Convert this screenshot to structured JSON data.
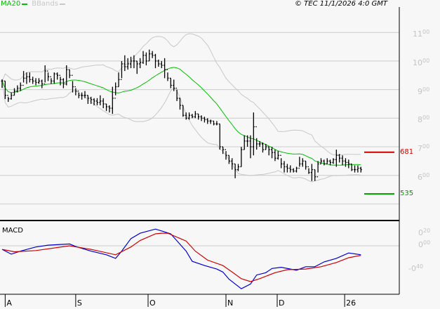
{
  "header": {
    "legend": [
      {
        "label": "MA20",
        "color": "#00c000"
      },
      {
        "label": "BBands",
        "color": "#c8c8c8"
      }
    ],
    "stamp": "© TEC 11/1/2026 4:0 GMT"
  },
  "chart_data": [
    {
      "type": "ohlc",
      "panel": "price",
      "ylim": [
        4.8,
        12.0
      ],
      "grid": true,
      "y_ticks": [
        {
          "value": 11,
          "main": "11",
          "sup": "00"
        },
        {
          "value": 10,
          "main": "10",
          "sup": "00"
        },
        {
          "value": 9,
          "main": "9",
          "sup": "00"
        },
        {
          "value": 8,
          "main": "8",
          "sup": "00"
        },
        {
          "value": 7,
          "main": "7",
          "sup": "00"
        },
        {
          "value": 6,
          "main": "6",
          "sup": "00"
        }
      ],
      "extra_gridlines": [
        5
      ],
      "bar_fields": [
        "high",
        "low",
        "close"
      ],
      "bars": [
        [
          9.36,
          9.06,
          9.3
        ],
        [
          9.3,
          8.67,
          8.8
        ],
        [
          8.75,
          8.57,
          8.68
        ],
        [
          8.9,
          8.65,
          8.8
        ],
        [
          9.05,
          8.8,
          8.95
        ],
        [
          9.15,
          8.9,
          9.05
        ],
        [
          9.25,
          8.95,
          9.15
        ],
        [
          9.65,
          9.25,
          9.4
        ],
        [
          9.6,
          9.2,
          9.45
        ],
        [
          9.6,
          9.25,
          9.35
        ],
        [
          9.45,
          9.2,
          9.3
        ],
        [
          9.4,
          9.15,
          9.25
        ],
        [
          9.4,
          9.2,
          9.3
        ],
        [
          9.35,
          9.05,
          9.2
        ],
        [
          9.85,
          9.25,
          9.65
        ],
        [
          9.6,
          9.3,
          9.45
        ],
        [
          9.4,
          9.2,
          9.3
        ],
        [
          9.6,
          9.2,
          9.55
        ],
        [
          9.6,
          9.35,
          9.5
        ],
        [
          9.45,
          9.15,
          9.35
        ],
        [
          9.4,
          9.05,
          9.2
        ],
        [
          9.85,
          9.15,
          9.7
        ],
        [
          9.7,
          9.4,
          9.5
        ],
        [
          9.3,
          8.9,
          9.1
        ],
        [
          9.05,
          8.8,
          8.95
        ],
        [
          8.9,
          8.7,
          8.8
        ],
        [
          8.9,
          8.65,
          8.8
        ],
        [
          8.95,
          8.7,
          8.8
        ],
        [
          8.8,
          8.5,
          8.7
        ],
        [
          8.75,
          8.5,
          8.65
        ],
        [
          8.7,
          8.45,
          8.6
        ],
        [
          8.7,
          8.45,
          8.55
        ],
        [
          8.8,
          8.45,
          8.6
        ],
        [
          8.7,
          8.35,
          8.5
        ],
        [
          8.5,
          8.25,
          8.4
        ],
        [
          8.45,
          8.2,
          8.35
        ],
        [
          9.1,
          8.15,
          8.7
        ],
        [
          9.25,
          8.8,
          9.1
        ],
        [
          9.6,
          9.1,
          9.35
        ],
        [
          10.0,
          9.4,
          9.9
        ],
        [
          10.2,
          9.65,
          9.8
        ],
        [
          10.1,
          9.7,
          9.9
        ],
        [
          10.15,
          9.75,
          10.0
        ],
        [
          10.2,
          9.75,
          10.0
        ],
        [
          10.0,
          9.55,
          9.9
        ],
        [
          10.1,
          9.75,
          9.95
        ],
        [
          10.35,
          9.9,
          10.2
        ],
        [
          10.3,
          9.85,
          10.0
        ],
        [
          10.4,
          10.0,
          10.25
        ],
        [
          10.35,
          10.1,
          10.2
        ],
        [
          10.25,
          9.75,
          10.0
        ],
        [
          10.05,
          9.8,
          9.9
        ],
        [
          10.0,
          9.75,
          9.85
        ],
        [
          10.1,
          9.4,
          9.7
        ],
        [
          9.6,
          9.3,
          9.4
        ],
        [
          9.4,
          9.05,
          9.15
        ],
        [
          9.35,
          8.95,
          9.05
        ],
        [
          9.0,
          8.6,
          8.7
        ],
        [
          8.7,
          8.3,
          8.45
        ],
        [
          8.45,
          8.05,
          8.1
        ],
        [
          8.2,
          7.95,
          8.0
        ],
        [
          8.2,
          7.95,
          8.1
        ],
        [
          8.15,
          8.0,
          8.05
        ],
        [
          8.25,
          8.0,
          8.15
        ],
        [
          8.15,
          7.95,
          8.05
        ],
        [
          8.1,
          7.9,
          8.0
        ],
        [
          8.05,
          7.85,
          7.95
        ],
        [
          8.0,
          7.8,
          7.9
        ],
        [
          7.95,
          7.8,
          7.9
        ],
        [
          7.9,
          7.75,
          7.8
        ],
        [
          7.9,
          7.75,
          7.8
        ],
        [
          7.8,
          6.9,
          7.0
        ],
        [
          7.0,
          6.75,
          6.9
        ],
        [
          6.85,
          6.55,
          6.7
        ],
        [
          6.7,
          6.4,
          6.5
        ],
        [
          6.6,
          6.2,
          6.4
        ],
        [
          6.4,
          5.9,
          6.2
        ],
        [
          6.4,
          6.15,
          6.3
        ],
        [
          7.0,
          6.3,
          6.9
        ],
        [
          7.4,
          6.9,
          7.2
        ],
        [
          7.4,
          7.0,
          7.2
        ],
        [
          7.4,
          6.6,
          7.0
        ],
        [
          8.2,
          6.7,
          7.7
        ],
        [
          7.3,
          6.9,
          7.1
        ],
        [
          7.2,
          7.0,
          7.1
        ],
        [
          7.15,
          6.8,
          6.9
        ],
        [
          7.1,
          6.9,
          7.0
        ],
        [
          7.0,
          6.7,
          6.9
        ],
        [
          7.0,
          6.6,
          6.8
        ],
        [
          6.9,
          6.5,
          6.6
        ],
        [
          6.85,
          6.55,
          6.7
        ],
        [
          6.6,
          6.25,
          6.4
        ],
        [
          6.5,
          6.1,
          6.3
        ],
        [
          6.4,
          6.1,
          6.25
        ],
        [
          6.35,
          6.1,
          6.2
        ],
        [
          6.25,
          6.1,
          6.15
        ],
        [
          6.3,
          6.1,
          6.25
        ],
        [
          6.65,
          6.3,
          6.4
        ],
        [
          6.6,
          6.3,
          6.5
        ],
        [
          6.5,
          6.2,
          6.3
        ],
        [
          6.25,
          6.05,
          6.1
        ],
        [
          6.4,
          5.8,
          6.2
        ],
        [
          6.2,
          5.8,
          5.95
        ],
        [
          6.5,
          6.1,
          6.4
        ],
        [
          6.6,
          6.4,
          6.5
        ],
        [
          6.55,
          6.35,
          6.4
        ],
        [
          6.6,
          6.4,
          6.5
        ],
        [
          6.55,
          6.35,
          6.45
        ],
        [
          6.6,
          6.4,
          6.55
        ],
        [
          6.9,
          6.3,
          6.7
        ],
        [
          6.75,
          6.45,
          6.6
        ],
        [
          6.7,
          6.35,
          6.5
        ],
        [
          6.6,
          6.3,
          6.45
        ],
        [
          6.55,
          6.25,
          6.4
        ],
        [
          6.4,
          6.15,
          6.2
        ],
        [
          6.35,
          6.1,
          6.2
        ],
        [
          6.35,
          6.1,
          6.25
        ],
        [
          6.3,
          6.1,
          6.2
        ]
      ],
      "indicators": [
        {
          "name": "MA20",
          "period": 20,
          "color": "#00c000"
        },
        {
          "name": "BBands",
          "period": 20,
          "stddev": 2,
          "color": "#c8c8c8"
        }
      ],
      "levels": [
        {
          "value": 6.81,
          "label": "681",
          "color": "#cc0000"
        },
        {
          "value": 5.35,
          "label": "535",
          "color": "#009900"
        }
      ],
      "date_ticks": [
        {
          "label": "A",
          "index": 1
        },
        {
          "label": "S",
          "index": 24
        },
        {
          "label": "O",
          "index": 47.6
        },
        {
          "label": "N",
          "index": 73
        },
        {
          "label": "D",
          "index": 89.7
        },
        {
          "label": "26",
          "index": 111.7
        }
      ]
    },
    {
      "type": "line",
      "panel": "macd",
      "title": "MACD",
      "ylim": [
        -0.82,
        0.42
      ],
      "y_ticks": [
        {
          "value": 0.2,
          "main": "0",
          "sup": "20"
        },
        {
          "value": 0.0,
          "main": "0",
          "sup": "00"
        },
        {
          "value": -0.4,
          "main": "-0",
          "sup": "40"
        }
      ],
      "zero_line": true,
      "series": [
        {
          "color": "#0000cc",
          "points": [
            [
              0,
              -0.06
            ],
            [
              3,
              -0.14
            ],
            [
              6,
              -0.09
            ],
            [
              11,
              -0.02
            ],
            [
              15,
              0.01
            ],
            [
              22,
              0.03
            ],
            [
              24,
              -0.01
            ],
            [
              29,
              -0.09
            ],
            [
              34,
              -0.15
            ],
            [
              37,
              -0.21
            ],
            [
              39,
              -0.09
            ],
            [
              42,
              0.12
            ],
            [
              45,
              0.21
            ],
            [
              50,
              0.28
            ],
            [
              52,
              0.25
            ],
            [
              55,
              0.2
            ],
            [
              60,
              -0.09
            ],
            [
              62,
              -0.26
            ],
            [
              66,
              -0.33
            ],
            [
              70,
              -0.39
            ],
            [
              72,
              -0.44
            ],
            [
              74,
              -0.56
            ],
            [
              78,
              -0.72
            ],
            [
              81,
              -0.64
            ],
            [
              83,
              -0.49
            ],
            [
              86,
              -0.45
            ],
            [
              88,
              -0.38
            ],
            [
              91,
              -0.36
            ],
            [
              94,
              -0.39
            ],
            [
              96,
              -0.41
            ],
            [
              99,
              -0.35
            ],
            [
              102,
              -0.35
            ],
            [
              105,
              -0.27
            ],
            [
              109,
              -0.21
            ],
            [
              113,
              -0.12
            ],
            [
              117,
              -0.15
            ]
          ]
        },
        {
          "color": "#cc0000",
          "points": [
            [
              0,
              -0.06
            ],
            [
              4,
              -0.1
            ],
            [
              11,
              -0.08
            ],
            [
              22,
              0.0
            ],
            [
              29,
              -0.06
            ],
            [
              37,
              -0.15
            ],
            [
              42,
              -0.02
            ],
            [
              45,
              0.09
            ],
            [
              50,
              0.2
            ],
            [
              52,
              0.21
            ],
            [
              54,
              0.21
            ],
            [
              60,
              0.08
            ],
            [
              63,
              -0.09
            ],
            [
              67,
              -0.24
            ],
            [
              72,
              -0.33
            ],
            [
              75,
              -0.44
            ],
            [
              78,
              -0.55
            ],
            [
              81,
              -0.6
            ],
            [
              84,
              -0.55
            ],
            [
              89,
              -0.45
            ],
            [
              93,
              -0.4
            ],
            [
              99,
              -0.39
            ],
            [
              104,
              -0.35
            ],
            [
              109,
              -0.28
            ],
            [
              113,
              -0.2
            ],
            [
              117,
              -0.16
            ]
          ]
        }
      ]
    }
  ]
}
